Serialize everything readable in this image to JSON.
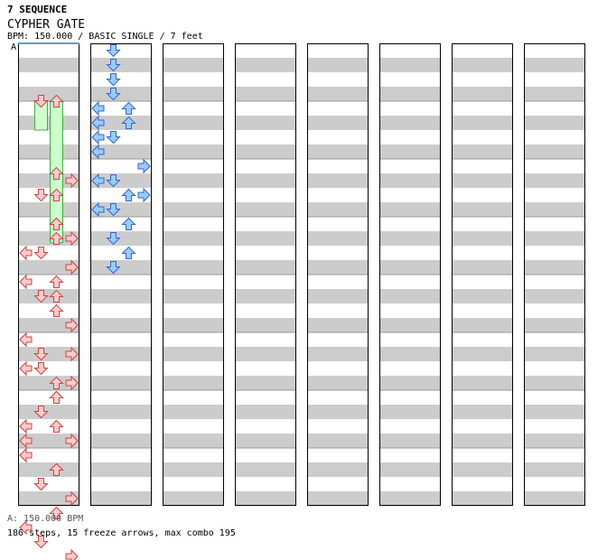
{
  "header": {
    "label": "7 SEQUENCE",
    "title": "CYPHER GATE",
    "info": "BPM: 150.000 / BASIC SINGLE / 7 feet",
    "section_marker": "A"
  },
  "footer": {
    "bpm_note": "A: 150.000 BPM",
    "stats": "186 steps, 15 freeze arrows, max combo 195"
  },
  "colors": {
    "stripe": "#cccccc",
    "border": "#000000",
    "red_fill": "#ffcccc",
    "red_stroke": "#cc4444",
    "blue_fill": "#99ccff",
    "blue_stroke": "#3366cc",
    "freeze_fill": "#ccffcc",
    "freeze_stroke": "#44aa44",
    "marker_line": "#6699cc"
  },
  "chart_data": {
    "type": "step-chart",
    "columns": 8,
    "measures_per_column": 8,
    "lanes": [
      "left",
      "down",
      "up",
      "right"
    ],
    "note_colors": [
      "red",
      "blue"
    ],
    "notes": [
      [
        2,
        0.5,
        3,
        "red"
      ],
      [
        2,
        1,
        1,
        "red"
      ],
      [
        2,
        1,
        2,
        "red"
      ],
      [
        2,
        2,
        2,
        "red"
      ],
      [
        2,
        2.5,
        3,
        "red"
      ],
      [
        2,
        3,
        0,
        "red"
      ],
      [
        2,
        3.5,
        3,
        "red"
      ],
      [
        3,
        0,
        2,
        "red"
      ],
      [
        3,
        0.5,
        2,
        "red"
      ],
      [
        3,
        1,
        1,
        "red"
      ],
      [
        3,
        1.5,
        3,
        "red"
      ],
      [
        3,
        2,
        0,
        "red"
      ],
      [
        3,
        2.5,
        2,
        "red"
      ],
      [
        4,
        0,
        2,
        "red"
      ],
      [
        4,
        0.5,
        1,
        "red"
      ],
      [
        4,
        1,
        2,
        "red"
      ],
      [
        4,
        1.5,
        3,
        "red"
      ],
      [
        4,
        2,
        0,
        "red"
      ],
      [
        4,
        2.5,
        1,
        "red"
      ],
      [
        4,
        3,
        1,
        "red"
      ],
      [
        4,
        3.5,
        2,
        "red"
      ],
      [
        5,
        0,
        0,
        "red"
      ],
      [
        5,
        0.5,
        3,
        "red"
      ],
      [
        5,
        1,
        0,
        "red"
      ],
      [
        5,
        1.5,
        3,
        "red"
      ],
      [
        5,
        2,
        2,
        "red"
      ],
      [
        5,
        2.5,
        1,
        "red"
      ],
      [
        5,
        3,
        2,
        "red"
      ],
      [
        5,
        3.5,
        0,
        "red"
      ],
      [
        6,
        0,
        2,
        "red"
      ],
      [
        6,
        0.5,
        1,
        "red"
      ],
      [
        6,
        1,
        0,
        "red"
      ],
      [
        6,
        1.5,
        3,
        "red"
      ],
      [
        6,
        2,
        0,
        "red"
      ],
      [
        6,
        2.5,
        2,
        "red"
      ],
      [
        6,
        3,
        1,
        "red"
      ],
      [
        6,
        3.5,
        3,
        "red"
      ],
      [
        7,
        0,
        0,
        "red"
      ],
      [
        7,
        0.5,
        2,
        "red"
      ],
      [
        7,
        1,
        1,
        "red"
      ],
      [
        7,
        1.5,
        3,
        "red"
      ],
      [
        7,
        2,
        2,
        "red"
      ],
      [
        7,
        2.5,
        0,
        "red"
      ],
      [
        7,
        3,
        1,
        "red"
      ],
      [
        7,
        3.5,
        3,
        "red"
      ],
      [
        8,
        0,
        1,
        "blue"
      ],
      [
        8,
        0.5,
        1,
        "blue"
      ],
      [
        8,
        1,
        1,
        "blue"
      ],
      [
        8,
        1.5,
        1,
        "blue"
      ],
      [
        8,
        2,
        2,
        "blue"
      ],
      [
        8,
        2.5,
        2,
        "blue"
      ],
      [
        8,
        3,
        1,
        "blue"
      ],
      [
        8,
        3.5,
        0,
        "blue"
      ],
      [
        9,
        0,
        0,
        "blue"
      ],
      [
        9,
        0.5,
        0,
        "blue"
      ],
      [
        9,
        1,
        0,
        "blue"
      ],
      [
        9,
        1.5,
        0,
        "blue"
      ],
      [
        9,
        2,
        3,
        "blue"
      ],
      [
        9,
        2.5,
        1,
        "blue"
      ],
      [
        9,
        3,
        2,
        "blue"
      ],
      [
        9,
        3.5,
        1,
        "blue"
      ],
      [
        10,
        0,
        3,
        "blue"
      ],
      [
        10,
        0.5,
        0,
        "blue"
      ],
      [
        10,
        1,
        3,
        "blue"
      ],
      [
        10,
        1.5,
        0,
        "blue"
      ],
      [
        10,
        2,
        2,
        "blue"
      ],
      [
        10,
        2.5,
        1,
        "blue"
      ],
      [
        10,
        3,
        2,
        "blue"
      ],
      [
        10,
        3.5,
        1,
        "blue"
      ]
    ],
    "freezes": [
      [
        1,
        0,
        0.5,
        1,
        "red"
      ],
      [
        1,
        0,
        1.5,
        2,
        "red"
      ],
      [
        2,
        0.5,
        1.2,
        2,
        "red"
      ]
    ]
  }
}
